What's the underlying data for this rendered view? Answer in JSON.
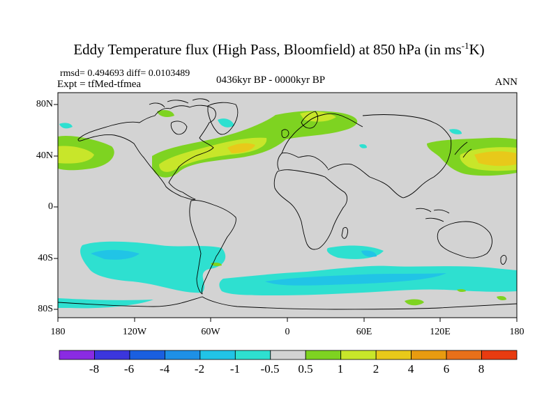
{
  "title_text": "Eddy Temperature flux (High Pass, Bloomfield) at 850 hPa (in ms",
  "title_sup": "-1",
  "title_end": "K)",
  "stats": "rmsd= 0.494693 diff= 0.0103489",
  "expt": "Expt = tfMed-tfmea",
  "period": "0436kyr BP - 0000kyr BP",
  "season": "ANN",
  "y_ticks": [
    "80N",
    "40N",
    "0",
    "40S",
    "80S"
  ],
  "x_ticks": [
    "180",
    "120W",
    "60W",
    "0",
    "60E",
    "120E",
    "180"
  ],
  "colorbar": {
    "colors": [
      "#8a2be2",
      "#3b36dd",
      "#1a5fe0",
      "#1e90e6",
      "#21c4e6",
      "#2ee0d0",
      "#d3d3d3",
      "#7ed321",
      "#c8e62a",
      "#e8c91a",
      "#e89b10",
      "#e8701a",
      "#e83b10"
    ],
    "labels": [
      "-8",
      "-6",
      "-4",
      "-2",
      "-1",
      "-0.5",
      "0.5",
      "1",
      "2",
      "4",
      "6",
      "8"
    ]
  },
  "map": {
    "background_color": "#d3d3d3",
    "coastline_color": "#000000"
  }
}
